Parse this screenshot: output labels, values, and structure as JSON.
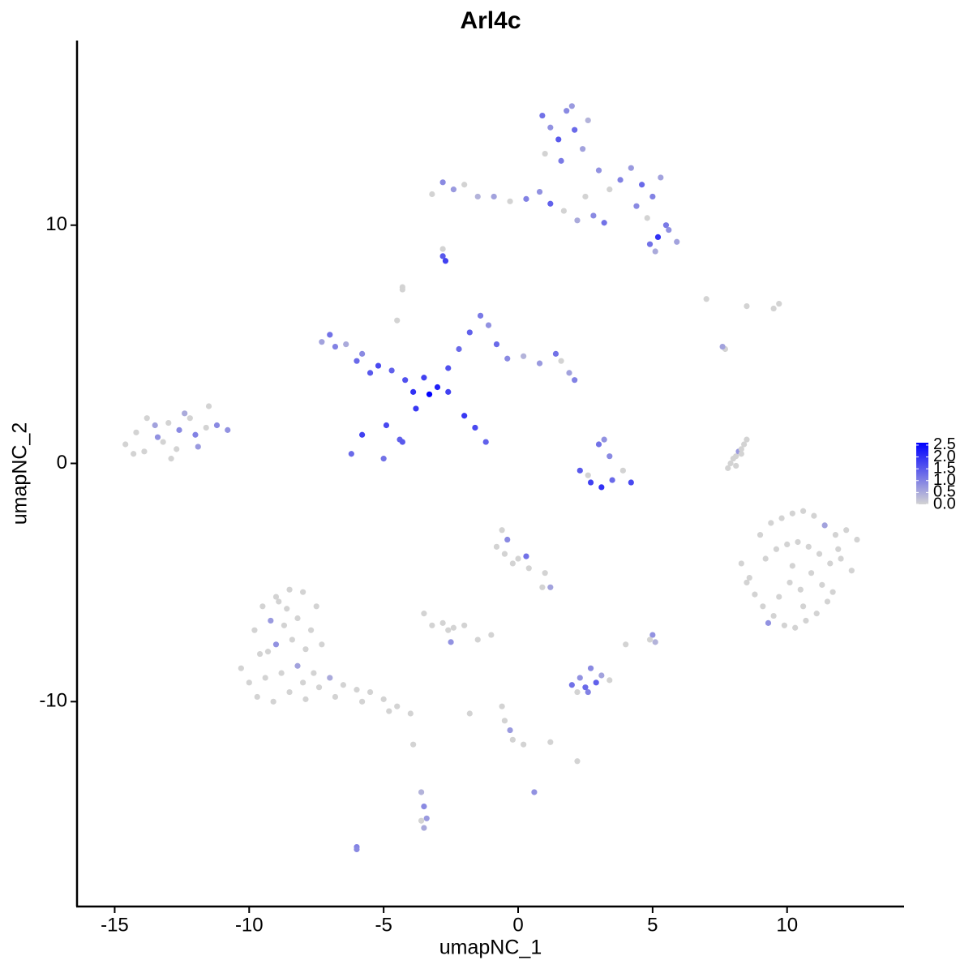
{
  "chart_data": {
    "type": "scatter",
    "title": "Arl4c",
    "x_label": "umapNC_1",
    "y_label": "umapNC_2",
    "xlim": [
      -16.4,
      14.35
    ],
    "ylim": [
      -18.6,
      17.75
    ],
    "xticks": [
      -15,
      -10,
      -5,
      0,
      5,
      10
    ],
    "yticks": [
      -10,
      0,
      10
    ],
    "color_low": "#d3d3d3",
    "color_high": "#0000ff",
    "colorlim": [
      0,
      2.6
    ],
    "colorbar_ticks": [
      {
        "value": 0,
        "label": "0.0"
      },
      0.5,
      {
        "value": 1,
        "label": "1.0"
      },
      1.5,
      {
        "value": 2,
        "label": "2.0"
      },
      2.5
    ],
    "x": [
      -14.6,
      -14.2,
      -13.9,
      -13.5,
      -13.2,
      -12.9,
      -12.6,
      -12.2,
      -11.9,
      -11.5,
      -14.3,
      -13.8,
      -13.4,
      -13.0,
      -12.7,
      -12.4,
      -12.0,
      -11.6,
      -11.2,
      -10.8,
      -3.3,
      -3.0,
      -2.6,
      -3.8,
      -4.2,
      -4.7,
      -5.2,
      -5.8,
      -6.4,
      -7.0,
      -7.3,
      -6.8,
      -6.0,
      -5.5,
      -4.9,
      -4.4,
      -5.8,
      -6.2,
      -5.0,
      -4.3,
      -2.6,
      -2.2,
      -1.8,
      -1.4,
      -1.1,
      -0.8,
      -0.4,
      0.2,
      0.8,
      1.4,
      1.9,
      2.1,
      1.6,
      -2.0,
      -1.6,
      -1.2,
      -4.5,
      -4.3,
      -3.9,
      -3.5,
      0.9,
      1.2,
      1.5,
      1.8,
      2.1,
      2.4,
      1.0,
      1.6,
      2.0,
      2.6,
      3.0,
      3.4,
      3.8,
      4.2,
      4.6,
      5.0,
      5.3,
      4.4,
      4.8,
      5.5,
      5.2,
      5.6,
      5.9,
      4.9,
      5.1,
      -3.2,
      -2.8,
      -2.4,
      -2.0,
      -1.5,
      -0.9,
      -0.3,
      0.3,
      0.8,
      1.2,
      1.7,
      2.2,
      2.8,
      3.2,
      2.5,
      -2.8,
      -2.7,
      -2.8,
      -4.3,
      7.0,
      9.7,
      9.5,
      8.5,
      7.7,
      7.6,
      2.3,
      2.7,
      3.1,
      3.5,
      3.9,
      3.0,
      3.2,
      2.6,
      4.2,
      3.4,
      7.8,
      7.9,
      8.0,
      8.1,
      8.2,
      8.3,
      8.4,
      8.5,
      8.1,
      8.3,
      9.0,
      9.4,
      9.8,
      10.2,
      10.6,
      11.0,
      11.4,
      11.8,
      12.2,
      12.6,
      9.2,
      9.6,
      10.0,
      10.4,
      10.8,
      11.2,
      11.6,
      12.0,
      12.4,
      10.1,
      8.3,
      8.5,
      8.8,
      9.1,
      9.5,
      9.9,
      10.3,
      10.7,
      11.1,
      11.5,
      9.7,
      10.5,
      11.3,
      10.9,
      10.2,
      11.7,
      9.3,
      10.6,
      11.9,
      8.6,
      -9.5,
      -9.0,
      -8.5,
      -8.0,
      -7.5,
      -9.8,
      -9.2,
      -8.7,
      -8.2,
      -7.7,
      -10.3,
      -9.6,
      -9.0,
      -8.4,
      -7.9,
      -7.3,
      -10.0,
      -9.4,
      -8.8,
      -8.2,
      -7.6,
      -9.7,
      -9.1,
      -8.5,
      -7.9,
      -8.6,
      -8.0,
      -9.3,
      -7.4,
      -8.9,
      -7.0,
      -6.5,
      -6.0,
      -5.5,
      -5.0,
      -4.5,
      -4.0,
      -6.8,
      -5.8,
      -4.8,
      -0.8,
      -0.4,
      0,
      0.3,
      -0.6,
      -0.2,
      0.4,
      1.0,
      1.2,
      -0.5,
      -3.2,
      -2.8,
      -2.4,
      -2.0,
      -2.6,
      -3.5,
      -2.5,
      -1.0,
      -1.5,
      0.9,
      2.0,
      2.3,
      2.6,
      2.9,
      3.1,
      2.2,
      2.7,
      2.5,
      3.4,
      4.0,
      -0.6,
      -0.5,
      -0.3,
      -0.2,
      0.2,
      1.2,
      2.2,
      -3.9,
      -1.8,
      0.6,
      -3.6,
      -3.5,
      -3.4,
      -3.6,
      -3.5,
      -6.0,
      -6.0,
      5.0,
      5.1,
      4.9
    ],
    "y": [
      0.8,
      1.3,
      0.5,
      1.6,
      0.9,
      0.2,
      1.4,
      1.9,
      0.7,
      2.4,
      0.4,
      1.9,
      1.1,
      1.7,
      0.6,
      2.1,
      1.2,
      1.5,
      1.6,
      1.4,
      2.9,
      3.2,
      3.0,
      2.3,
      3.5,
      3.9,
      4.1,
      4.6,
      5.0,
      5.4,
      5.1,
      4.9,
      4.3,
      3.8,
      1.6,
      1.0,
      1.2,
      0.4,
      0.2,
      0.9,
      4.0,
      4.8,
      5.5,
      6.2,
      5.8,
      5.0,
      4.4,
      4.5,
      4.2,
      4.6,
      3.8,
      3.5,
      4.3,
      2.0,
      1.5,
      0.9,
      6.0,
      7.3,
      3.0,
      3.6,
      14.6,
      14.1,
      13.6,
      14.8,
      14.0,
      13.2,
      13.0,
      12.7,
      15.0,
      14.4,
      12.3,
      11.5,
      11.9,
      12.4,
      11.7,
      11.2,
      12.0,
      10.8,
      10.3,
      10.0,
      9.5,
      9.8,
      9.3,
      9.2,
      8.9,
      11.3,
      11.8,
      11.5,
      11.7,
      11.2,
      11.2,
      11.0,
      11.1,
      11.4,
      10.9,
      10.6,
      10.2,
      10.4,
      10.1,
      11.2,
      8.7,
      8.5,
      9.0,
      7.4,
      6.9,
      6.7,
      6.5,
      6.6,
      4.8,
      4.9,
      -0.3,
      -0.8,
      -1.0,
      -0.7,
      -0.3,
      0.8,
      1.0,
      -0.5,
      -0.8,
      0.3,
      -0.2,
      0.0,
      0.2,
      0.3,
      0.5,
      0.6,
      0.8,
      1.0,
      -0.1,
      0.4,
      -3.0,
      -2.5,
      -2.3,
      -2.1,
      -2.0,
      -2.2,
      -2.6,
      -3.0,
      -2.8,
      -3.2,
      -4.0,
      -3.6,
      -3.4,
      -3.3,
      -3.5,
      -3.8,
      -4.2,
      -4.0,
      -4.5,
      -5.0,
      -4.2,
      -5.0,
      -5.5,
      -6.0,
      -6.4,
      -6.8,
      -6.9,
      -6.6,
      -6.3,
      -5.8,
      -5.6,
      -5.3,
      -5.1,
      -4.6,
      -4.3,
      -5.4,
      -6.7,
      -6.0,
      -3.6,
      -4.8,
      -6.0,
      -5.6,
      -5.3,
      -5.4,
      -6.0,
      -7.0,
      -6.6,
      -6.8,
      -6.5,
      -7.0,
      -8.6,
      -8.0,
      -7.6,
      -7.4,
      -7.8,
      -7.6,
      -9.2,
      -9.0,
      -8.8,
      -8.5,
      -8.8,
      -9.8,
      -10.0,
      -9.6,
      -9.9,
      -6.1,
      -9.2,
      -7.9,
      -9.4,
      -5.8,
      -9.0,
      -9.3,
      -9.5,
      -9.6,
      -9.9,
      -10.2,
      -10.5,
      -9.8,
      -10.0,
      -10.4,
      -3.5,
      -3.2,
      -4.0,
      -3.9,
      -2.8,
      -4.2,
      -4.4,
      -4.6,
      -5.2,
      -3.8,
      -6.8,
      -6.7,
      -6.9,
      -6.8,
      -7.0,
      -6.3,
      -7.5,
      -7.2,
      -7.4,
      -5.2,
      -9.3,
      -9.0,
      -9.6,
      -9.2,
      -8.9,
      -9.6,
      -8.6,
      -9.4,
      -9.1,
      -7.6,
      -10.2,
      -10.8,
      -11.2,
      -11.6,
      -11.8,
      -11.7,
      -12.5,
      -11.8,
      -10.5,
      -13.8,
      -13.8,
      -14.4,
      -14.9,
      -15.0,
      -15.3,
      -16.1,
      -16.2,
      -7.2,
      -7.5,
      -7.4
    ],
    "expression": [
      0,
      0,
      0,
      0.6,
      0,
      0,
      0.9,
      0,
      0.7,
      0,
      0,
      0,
      0.8,
      0,
      0,
      0.5,
      1.0,
      0,
      0.9,
      0.8,
      2.6,
      2.2,
      1.8,
      1.9,
      1.6,
      1.4,
      1.7,
      0.9,
      0.5,
      1.2,
      0.6,
      1.0,
      1.3,
      1.5,
      1.7,
      1.4,
      1.8,
      1.3,
      1.2,
      1.5,
      1.6,
      1.3,
      1.4,
      1.1,
      0.8,
      1.3,
      0.9,
      0.4,
      0.7,
      1.2,
      0.6,
      1.0,
      0,
      1.9,
      1.7,
      1.4,
      0,
      0,
      2.0,
      1.8,
      1.2,
      0.8,
      1.5,
      0.9,
      1.3,
      0.6,
      0,
      1.1,
      0.7,
      0.4,
      0.8,
      0,
      1.0,
      0.7,
      1.3,
      1.0,
      0.6,
      0.9,
      0,
      1.1,
      2.0,
      0.8,
      0.6,
      1.2,
      0.5,
      0,
      0.9,
      0.7,
      0,
      0.4,
      0.6,
      0,
      1.0,
      0.8,
      1.4,
      0,
      0.5,
      0.9,
      1.2,
      0,
      1.5,
      1.8,
      0,
      0,
      0,
      0,
      0,
      0,
      0,
      0.6,
      1.5,
      1.8,
      2.0,
      1.3,
      0,
      1.2,
      0.8,
      0,
      1.7,
      0.9,
      0,
      0,
      0,
      0,
      0.7,
      0,
      0,
      0,
      0,
      0,
      0,
      0,
      0,
      0,
      0,
      0,
      0.6,
      0,
      0,
      0,
      0,
      0,
      0,
      0,
      0,
      0,
      0,
      0,
      0,
      0,
      0,
      0,
      0,
      0,
      0,
      0,
      0,
      0,
      0,
      0,
      0,
      0,
      0,
      0,
      0,
      0,
      0.8,
      0,
      0,
      0,
      0,
      0,
      0,
      0,
      0,
      0,
      0.7,
      0,
      0,
      0,
      0,
      0,
      0.8,
      0,
      0,
      0,
      0,
      0,
      0,
      0.6,
      0,
      0,
      0,
      0,
      0,
      0,
      0,
      0,
      0,
      0,
      0.5,
      0,
      0,
      0,
      0,
      0,
      0,
      0,
      0,
      0,
      0,
      0.9,
      0,
      1.2,
      0,
      0,
      0,
      0,
      0.6,
      0,
      0,
      0,
      0,
      0,
      0,
      0,
      0.8,
      0,
      0,
      0,
      1.2,
      0.8,
      1.0,
      1.4,
      0.6,
      0,
      0.9,
      1.3,
      0,
      0,
      0,
      0,
      0.7,
      0,
      0,
      0,
      0,
      0,
      0,
      0.8,
      0.4,
      0.9,
      0.7,
      0,
      0.5,
      1.0,
      0.9,
      0.8,
      0.4,
      0
    ]
  }
}
